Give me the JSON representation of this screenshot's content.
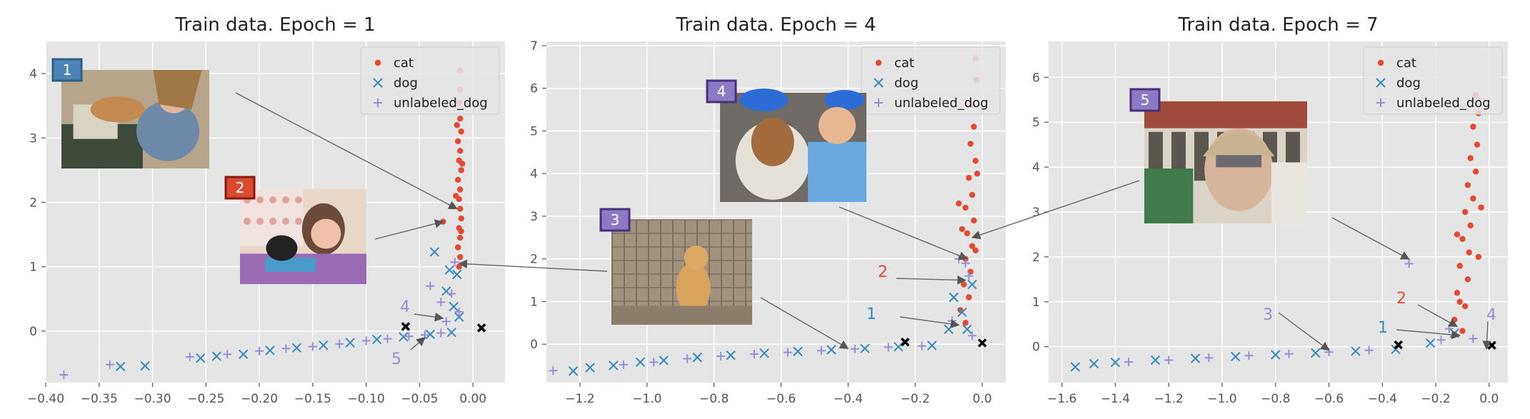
{
  "colors": {
    "cat": "#e24a33",
    "dog": "#348abd",
    "unlabeled_dog": "#988ed5",
    "axes_bg": "#e5e5e5",
    "grid": "#ffffff",
    "text": "#555555",
    "marker_black": "#000000",
    "arrow": "#666666",
    "badge_border_1": "#2e5f85",
    "badge_border_2": "#8a1a10",
    "badge_border_purple": "#4a2f7a"
  },
  "legend": [
    "cat",
    "dog",
    "unlabeled_dog"
  ],
  "chart_data": [
    {
      "type": "scatter",
      "title": "Train data. Epoch = 1",
      "xlim": [
        -0.4,
        0.03
      ],
      "ylim": [
        -0.8,
        4.5
      ],
      "xticks": [
        -0.4,
        -0.35,
        -0.3,
        -0.25,
        -0.2,
        -0.15,
        -0.1,
        -0.05,
        0.0
      ],
      "xtick_labels": [
        "−0.40",
        "−0.35",
        "−0.30",
        "−0.25",
        "−0.20",
        "−0.15",
        "−0.10",
        "−0.05",
        "0.00"
      ],
      "yticks": [
        0,
        1,
        2,
        3,
        4
      ],
      "ytick_labels": [
        "0",
        "1",
        "2",
        "3",
        "4"
      ],
      "grid": true,
      "legend_position": "top-right",
      "series": [
        {
          "name": "cat",
          "marker": "dot",
          "points": [
            [
              -0.012,
              4.05
            ],
            [
              -0.012,
              3.75
            ],
            [
              -0.013,
              3.55
            ],
            [
              -0.012,
              3.3
            ],
            [
              -0.011,
              3.1
            ],
            [
              -0.014,
              2.95
            ],
            [
              -0.012,
              2.8
            ],
            [
              -0.013,
              2.65
            ],
            [
              -0.011,
              2.5
            ],
            [
              -0.014,
              2.35
            ],
            [
              -0.012,
              2.2
            ],
            [
              -0.013,
              2.05
            ],
            [
              -0.012,
              1.9
            ],
            [
              -0.011,
              1.75
            ],
            [
              -0.013,
              1.6
            ],
            [
              -0.012,
              1.45
            ],
            [
              -0.014,
              1.3
            ],
            [
              -0.012,
              1.15
            ],
            [
              -0.013,
              1.0
            ],
            [
              -0.028,
              1.7
            ],
            [
              -0.015,
              3.2
            ],
            [
              -0.01,
              2.6
            ],
            [
              -0.016,
              2.1
            ],
            [
              -0.011,
              1.55
            ]
          ]
        },
        {
          "name": "dog",
          "marker": "x",
          "points": [
            [
              -0.33,
              -0.55
            ],
            [
              -0.307,
              -0.54
            ],
            [
              -0.255,
              -0.42
            ],
            [
              -0.24,
              -0.39
            ],
            [
              -0.215,
              -0.36
            ],
            [
              -0.19,
              -0.3
            ],
            [
              -0.165,
              -0.26
            ],
            [
              -0.14,
              -0.22
            ],
            [
              -0.115,
              -0.18
            ],
            [
              -0.09,
              -0.13
            ],
            [
              -0.065,
              -0.09
            ],
            [
              -0.04,
              -0.05
            ],
            [
              -0.02,
              -0.02
            ],
            [
              -0.036,
              1.23
            ],
            [
              -0.025,
              0.62
            ],
            [
              -0.018,
              0.38
            ],
            [
              -0.015,
              0.88
            ],
            [
              -0.022,
              0.95
            ],
            [
              -0.013,
              0.22
            ]
          ]
        },
        {
          "name": "unlabeled_dog",
          "marker": "plus",
          "points": [
            [
              -0.383,
              -0.68
            ],
            [
              -0.34,
              -0.52
            ],
            [
              -0.265,
              -0.4
            ],
            [
              -0.23,
              -0.36
            ],
            [
              -0.2,
              -0.31
            ],
            [
              -0.175,
              -0.27
            ],
            [
              -0.15,
              -0.24
            ],
            [
              -0.125,
              -0.2
            ],
            [
              -0.1,
              -0.15
            ],
            [
              -0.08,
              -0.12
            ],
            [
              -0.06,
              -0.08
            ],
            [
              -0.045,
              -0.06
            ],
            [
              -0.03,
              -0.03
            ],
            [
              -0.04,
              0.7
            ],
            [
              -0.03,
              0.45
            ],
            [
              -0.017,
              1.07
            ],
            [
              -0.02,
              0.58
            ],
            [
              -0.013,
              0.3
            ],
            [
              -0.025,
              0.15
            ]
          ]
        },
        {
          "name": "",
          "marker": "black-x",
          "points": [
            [
              -0.063,
              0.07
            ],
            [
              0.008,
              0.05
            ]
          ]
        }
      ],
      "annotations": [
        {
          "label": "4",
          "color": "#988ed5",
          "target": [
            -0.028,
            0.2
          ]
        },
        {
          "label": "5",
          "color": "#988ed5",
          "target": [
            -0.045,
            -0.1
          ]
        }
      ],
      "photo_badges": [
        {
          "label": "1",
          "fill": "#4b84b5"
        },
        {
          "label": "2",
          "fill": "#d94a2f"
        }
      ]
    },
    {
      "type": "scatter",
      "title": "Train data. Epoch = 4",
      "xlim": [
        -1.3,
        0.07
      ],
      "ylim": [
        -0.9,
        7.1
      ],
      "xticks": [
        -1.2,
        -1.0,
        -0.8,
        -0.6,
        -0.4,
        -0.2,
        0.0
      ],
      "xtick_labels": [
        "−1.2",
        "−1.0",
        "−0.8",
        "−0.6",
        "−0.4",
        "−0.2",
        "0.0"
      ],
      "yticks": [
        0,
        1,
        2,
        3,
        4,
        5,
        6,
        7
      ],
      "ytick_labels": [
        "0",
        "1",
        "2",
        "3",
        "4",
        "5",
        "6",
        "7"
      ],
      "grid": true,
      "legend_position": "top-right",
      "series": [
        {
          "name": "cat",
          "marker": "dot",
          "points": [
            [
              -0.02,
              6.7
            ],
            [
              -0.018,
              6.2
            ],
            [
              -0.03,
              5.6
            ],
            [
              -0.025,
              5.1
            ],
            [
              -0.035,
              4.7
            ],
            [
              -0.02,
              4.3
            ],
            [
              -0.04,
              3.9
            ],
            [
              -0.03,
              3.5
            ],
            [
              -0.05,
              3.2
            ],
            [
              -0.025,
              2.9
            ],
            [
              -0.045,
              2.6
            ],
            [
              -0.03,
              2.3
            ],
            [
              -0.05,
              2.0
            ],
            [
              -0.035,
              1.7
            ],
            [
              -0.055,
              1.4
            ],
            [
              -0.04,
              1.1
            ],
            [
              -0.065,
              0.8
            ],
            [
              -0.05,
              0.5
            ],
            [
              -0.07,
              3.3
            ],
            [
              -0.015,
              4.0
            ],
            [
              -0.06,
              2.7
            ],
            [
              -0.02,
              2.2
            ]
          ]
        },
        {
          "name": "dog",
          "marker": "x",
          "points": [
            [
              -1.22,
              -0.63
            ],
            [
              -1.17,
              -0.55
            ],
            [
              -1.1,
              -0.5
            ],
            [
              -1.02,
              -0.42
            ],
            [
              -0.95,
              -0.38
            ],
            [
              -0.85,
              -0.31
            ],
            [
              -0.75,
              -0.26
            ],
            [
              -0.65,
              -0.21
            ],
            [
              -0.55,
              -0.17
            ],
            [
              -0.45,
              -0.13
            ],
            [
              -0.35,
              -0.1
            ],
            [
              -0.25,
              -0.06
            ],
            [
              -0.15,
              -0.03
            ],
            [
              -0.085,
              1.1
            ],
            [
              -0.06,
              0.75
            ],
            [
              -0.045,
              0.35
            ],
            [
              -0.1,
              0.35
            ],
            [
              -0.03,
              1.4
            ]
          ]
        },
        {
          "name": "unlabeled_dog",
          "marker": "plus",
          "points": [
            [
              -1.28,
              -0.62
            ],
            [
              -1.07,
              -0.48
            ],
            [
              -0.98,
              -0.42
            ],
            [
              -0.88,
              -0.34
            ],
            [
              -0.78,
              -0.28
            ],
            [
              -0.68,
              -0.23
            ],
            [
              -0.58,
              -0.19
            ],
            [
              -0.48,
              -0.15
            ],
            [
              -0.38,
              -0.11
            ],
            [
              -0.28,
              -0.07
            ],
            [
              -0.18,
              -0.04
            ],
            [
              -0.07,
              2.0
            ],
            [
              -0.04,
              1.6
            ],
            [
              -0.09,
              0.55
            ],
            [
              -0.05,
              1.9
            ],
            [
              -0.03,
              0.2
            ]
          ]
        },
        {
          "name": "",
          "marker": "black-x",
          "points": [
            [
              -0.23,
              0.05
            ],
            [
              0.0,
              0.03
            ]
          ]
        }
      ],
      "annotations": [
        {
          "label": "1",
          "color": "#348abd",
          "target": [
            -0.07,
            0.45
          ]
        },
        {
          "label": "2",
          "color": "#e24a33",
          "target": [
            -0.05,
            1.5
          ]
        }
      ],
      "photo_badges": [
        {
          "label": "3",
          "fill": "#8d7ac6"
        },
        {
          "label": "4",
          "fill": "#8d7ac6"
        }
      ]
    },
    {
      "type": "scatter",
      "title": "Train data. Epoch = 7",
      "xlim": [
        -1.65,
        0.07
      ],
      "ylim": [
        -0.8,
        6.8
      ],
      "xticks": [
        -1.6,
        -1.4,
        -1.2,
        -1.0,
        -0.8,
        -0.6,
        -0.4,
        -0.2,
        0.0
      ],
      "xtick_labels": [
        "−1.6",
        "−1.4",
        "−1.2",
        "−1.0",
        "−0.8",
        "−0.6",
        "−0.4",
        "−0.2",
        "0.0"
      ],
      "yticks": [
        0,
        1,
        2,
        3,
        4,
        5,
        6
      ],
      "ytick_labels": [
        "0",
        "1",
        "2",
        "3",
        "4",
        "5",
        "6"
      ],
      "grid": true,
      "legend_position": "top-right",
      "series": [
        {
          "name": "cat",
          "marker": "dot",
          "points": [
            [
              -0.05,
              5.6
            ],
            [
              -0.04,
              5.2
            ],
            [
              -0.06,
              4.9
            ],
            [
              -0.045,
              4.5
            ],
            [
              -0.07,
              4.2
            ],
            [
              -0.05,
              3.9
            ],
            [
              -0.08,
              3.6
            ],
            [
              -0.06,
              3.3
            ],
            [
              -0.09,
              3.0
            ],
            [
              -0.07,
              2.7
            ],
            [
              -0.1,
              2.4
            ],
            [
              -0.075,
              2.1
            ],
            [
              -0.11,
              1.8
            ],
            [
              -0.08,
              1.5
            ],
            [
              -0.12,
              1.2
            ],
            [
              -0.09,
              0.9
            ],
            [
              -0.13,
              0.6
            ],
            [
              -0.1,
              0.35
            ],
            [
              -0.03,
              3.1
            ],
            [
              -0.12,
              2.5
            ],
            [
              -0.04,
              2.0
            ],
            [
              -0.11,
              1.0
            ]
          ]
        },
        {
          "name": "dog",
          "marker": "x",
          "points": [
            [
              -1.55,
              -0.45
            ],
            [
              -1.48,
              -0.38
            ],
            [
              -1.4,
              -0.35
            ],
            [
              -1.25,
              -0.3
            ],
            [
              -1.1,
              -0.26
            ],
            [
              -0.95,
              -0.22
            ],
            [
              -0.8,
              -0.18
            ],
            [
              -0.65,
              -0.14
            ],
            [
              -0.5,
              -0.1
            ],
            [
              -0.35,
              -0.06
            ],
            [
              -0.22,
              0.08
            ],
            [
              -0.13,
              0.3
            ]
          ]
        },
        {
          "name": "unlabeled_dog",
          "marker": "plus",
          "points": [
            [
              -1.35,
              -0.34
            ],
            [
              -1.2,
              -0.3
            ],
            [
              -1.05,
              -0.25
            ],
            [
              -0.9,
              -0.2
            ],
            [
              -0.75,
              -0.16
            ],
            [
              -0.6,
              -0.12
            ],
            [
              -0.45,
              -0.08
            ],
            [
              -0.3,
              1.85
            ],
            [
              -0.18,
              0.15
            ],
            [
              -0.15,
              0.4
            ],
            [
              -0.06,
              0.18
            ]
          ]
        },
        {
          "name": "",
          "marker": "black-x",
          "points": [
            [
              -0.34,
              0.04
            ],
            [
              0.01,
              0.03
            ]
          ]
        }
      ],
      "annotations": [
        {
          "label": "1",
          "color": "#348abd",
          "target": [
            -0.11,
            0.25
          ]
        },
        {
          "label": "2",
          "color": "#e24a33",
          "target": [
            -0.12,
            0.45
          ]
        },
        {
          "label": "3",
          "color": "#988ed5",
          "target": [
            -0.6,
            -0.08
          ]
        },
        {
          "label": "4",
          "color": "#988ed5",
          "target": [
            -0.01,
            -0.05
          ]
        }
      ],
      "photo_badges": [
        {
          "label": "5",
          "fill": "#8d7ac6"
        }
      ]
    }
  ]
}
